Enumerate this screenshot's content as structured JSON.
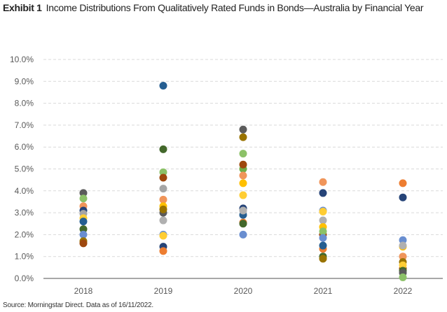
{
  "chart_data": {
    "type": "scatter",
    "title_prefix": "Exhibit 1",
    "title": "Income Distributions From Qualitatively Rated Funds in Bonds—Australia by Financial Year",
    "source": "Source: Morningstar Direct. Data as of 16/11/2022.",
    "xlabel": "",
    "ylabel": "",
    "categories": [
      "2018",
      "2019",
      "2020",
      "2021",
      "2022"
    ],
    "ylim": [
      0,
      10
    ],
    "yticks": [
      "0.0%",
      "1.0%",
      "2.0%",
      "3.0%",
      "4.0%",
      "5.0%",
      "6.0%",
      "7.0%",
      "8.0%",
      "9.0%",
      "10.0%"
    ],
    "grid": true,
    "points": [
      {
        "year": "2018",
        "value": 3.9,
        "color": "#5b5b5b"
      },
      {
        "year": "2018",
        "value": 3.65,
        "color": "#8cc168"
      },
      {
        "year": "2018",
        "value": 3.3,
        "color": "#f0955a"
      },
      {
        "year": "2018",
        "value": 3.1,
        "color": "#264478"
      },
      {
        "year": "2018",
        "value": 2.95,
        "color": "#a5a5a5"
      },
      {
        "year": "2018",
        "value": 2.75,
        "color": "#ffcd33"
      },
      {
        "year": "2018",
        "value": 2.6,
        "color": "#255e91"
      },
      {
        "year": "2018",
        "value": 2.25,
        "color": "#43682b"
      },
      {
        "year": "2018",
        "value": 2.0,
        "color": "#698ed0"
      },
      {
        "year": "2018",
        "value": 1.7,
        "color": "#997300"
      },
      {
        "year": "2018",
        "value": 1.6,
        "color": "#9e480e"
      },
      {
        "year": "2019",
        "value": 8.8,
        "color": "#255e91"
      },
      {
        "year": "2019",
        "value": 5.9,
        "color": "#43682b"
      },
      {
        "year": "2019",
        "value": 4.85,
        "color": "#8cc168"
      },
      {
        "year": "2019",
        "value": 4.6,
        "color": "#9e480e"
      },
      {
        "year": "2019",
        "value": 4.1,
        "color": "#a5a5a5"
      },
      {
        "year": "2019",
        "value": 3.6,
        "color": "#f0955a"
      },
      {
        "year": "2019",
        "value": 3.3,
        "color": "#ffc000"
      },
      {
        "year": "2019",
        "value": 3.0,
        "color": "#5b5b5b"
      },
      {
        "year": "2019",
        "value": 3.15,
        "color": "#997300"
      },
      {
        "year": "2019",
        "value": 2.65,
        "color": "#b0b0b0"
      },
      {
        "year": "2019",
        "value": 2.0,
        "color": "#698ed0"
      },
      {
        "year": "2019",
        "value": 1.95,
        "color": "#ffcd33"
      },
      {
        "year": "2019",
        "value": 1.45,
        "color": "#264478"
      },
      {
        "year": "2019",
        "value": 1.25,
        "color": "#ed7d31"
      },
      {
        "year": "2020",
        "value": 6.8,
        "color": "#5b5b5b"
      },
      {
        "year": "2020",
        "value": 6.45,
        "color": "#997300"
      },
      {
        "year": "2020",
        "value": 5.7,
        "color": "#8cc168"
      },
      {
        "year": "2020",
        "value": 5.0,
        "color": "#70ad47"
      },
      {
        "year": "2020",
        "value": 5.2,
        "color": "#9e480e"
      },
      {
        "year": "2020",
        "value": 4.7,
        "color": "#f0955a"
      },
      {
        "year": "2020",
        "value": 4.35,
        "color": "#ffc000"
      },
      {
        "year": "2020",
        "value": 3.8,
        "color": "#ffcd33"
      },
      {
        "year": "2020",
        "value": 3.2,
        "color": "#264478"
      },
      {
        "year": "2020",
        "value": 2.9,
        "color": "#255e91"
      },
      {
        "year": "2020",
        "value": 3.1,
        "color": "#b0b0b0"
      },
      {
        "year": "2020",
        "value": 2.55,
        "color": "#ed7d31"
      },
      {
        "year": "2020",
        "value": 2.5,
        "color": "#43682b"
      },
      {
        "year": "2020",
        "value": 2.0,
        "color": "#698ed0"
      },
      {
        "year": "2021",
        "value": 4.4,
        "color": "#f0955a"
      },
      {
        "year": "2021",
        "value": 3.9,
        "color": "#264478"
      },
      {
        "year": "2021",
        "value": 3.1,
        "color": "#698ed0"
      },
      {
        "year": "2021",
        "value": 3.05,
        "color": "#ffcd33"
      },
      {
        "year": "2021",
        "value": 2.65,
        "color": "#b0b0b0"
      },
      {
        "year": "2021",
        "value": 2.35,
        "color": "#ffc000"
      },
      {
        "year": "2021",
        "value": 2.0,
        "color": "#9e480e"
      },
      {
        "year": "2021",
        "value": 2.15,
        "color": "#8cc168"
      },
      {
        "year": "2021",
        "value": 1.85,
        "color": "#698ed0"
      },
      {
        "year": "2021",
        "value": 1.35,
        "color": "#ed7d31"
      },
      {
        "year": "2021",
        "value": 1.5,
        "color": "#255e91"
      },
      {
        "year": "2021",
        "value": 1.0,
        "color": "#43682b"
      },
      {
        "year": "2021",
        "value": 0.9,
        "color": "#997300"
      },
      {
        "year": "2022",
        "value": 4.35,
        "color": "#ed7d31"
      },
      {
        "year": "2022",
        "value": 3.7,
        "color": "#264478"
      },
      {
        "year": "2022",
        "value": 1.75,
        "color": "#698ed0"
      },
      {
        "year": "2022",
        "value": 1.45,
        "color": "#ffc000"
      },
      {
        "year": "2022",
        "value": 1.5,
        "color": "#b0b0b0"
      },
      {
        "year": "2022",
        "value": 1.0,
        "color": "#f0955a"
      },
      {
        "year": "2022",
        "value": 0.75,
        "color": "#997300"
      },
      {
        "year": "2022",
        "value": 0.45,
        "color": "#9e480e"
      },
      {
        "year": "2022",
        "value": 0.6,
        "color": "#ffcd33"
      },
      {
        "year": "2022",
        "value": 0.35,
        "color": "#43682b"
      },
      {
        "year": "2022",
        "value": 0.25,
        "color": "#5b5b5b"
      },
      {
        "year": "2022",
        "value": 0.05,
        "color": "#8cc168"
      }
    ]
  }
}
